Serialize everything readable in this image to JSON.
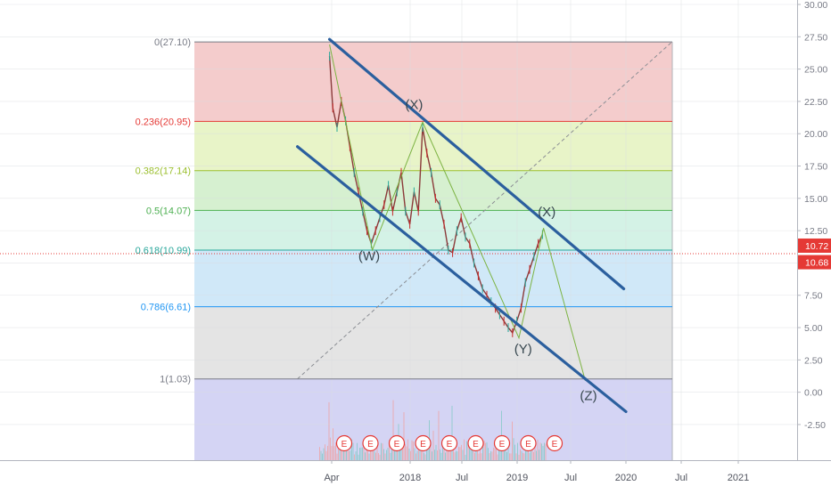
{
  "chart_data": {
    "type": "candlestick",
    "x_axis": {
      "tick_labels": [
        "Apr",
        "2018",
        "Jul",
        "2019",
        "Jul",
        "2020",
        "Jul",
        "2021"
      ]
    },
    "y_axis": {
      "range": [
        -4.5,
        30
      ],
      "tick_values": [
        -2.5,
        0,
        2.5,
        5,
        7.5,
        10,
        12.5,
        15,
        17.5,
        20,
        22.5,
        25,
        27.5,
        30
      ],
      "tick_labels": [
        "-2.50",
        "0.00",
        "2.50",
        "5.00",
        "7.50",
        "10.00",
        "12.50",
        "15.00",
        "17.50",
        "20.00",
        "22.50",
        "25.00",
        "27.50",
        "30.00"
      ]
    },
    "price_labels": [
      {
        "label": "10.72",
        "value": 10.72,
        "color": "#e53935"
      },
      {
        "label": "10.68",
        "value": 10.68,
        "color": "#e53935"
      }
    ],
    "fibonacci": {
      "levels": [
        {
          "label": "0(27.10)",
          "value": 27.1,
          "color": "#787b86"
        },
        {
          "label": "0.236(20.95)",
          "value": 20.95,
          "color": "#e53935"
        },
        {
          "label": "0.382(17.14)",
          "value": 17.14,
          "color": "#9bbf2e"
        },
        {
          "label": "0.5(14.07)",
          "value": 14.07,
          "color": "#4caf50"
        },
        {
          "label": "0.618(10.99)",
          "value": 10.99,
          "color": "#26a69a"
        },
        {
          "label": "0.786(6.61)",
          "value": 6.61,
          "color": "#2196f3"
        },
        {
          "label": "1(1.03)",
          "value": 1.03,
          "color": "#787b86"
        }
      ],
      "zone_colors": [
        "#f4cccc",
        "#e8f4c8",
        "#d6f0d0",
        "#d4f2e6",
        "#d0e8f8",
        "#e4e4e4",
        "#d4d4f4"
      ]
    },
    "wave_labels": [
      {
        "label": "(X)",
        "x": 2018.02,
        "y": 21.9
      },
      {
        "label": "(W)",
        "x": 2017.6,
        "y": 10.2
      },
      {
        "label": "(X)",
        "x": 2019.26,
        "y": 13.6
      },
      {
        "label": "(Y)",
        "x": 2019.04,
        "y": 3.0
      },
      {
        "label": "(Z)",
        "x": 2019.65,
        "y": -0.6
      }
    ],
    "wave_path": [
      [
        2017.23,
        26.9
      ],
      [
        2017.63,
        11.0
      ],
      [
        2018.1,
        20.9
      ],
      [
        2019.0,
        4.2
      ],
      [
        2019.23,
        12.7
      ],
      [
        2019.62,
        0.9
      ]
    ],
    "channel_upper": [
      [
        2017.23,
        27.3
      ],
      [
        2019.98,
        8.0
      ]
    ],
    "channel_lower": [
      [
        2016.93,
        19.0
      ],
      [
        2020.0,
        -1.5
      ]
    ],
    "diagonal": [
      [
        2016.93,
        1.03
      ],
      [
        2020.43,
        27.1
      ]
    ],
    "earnings_marker": "E",
    "earnings_count": 9,
    "price_series": {
      "x": [
        2017.23,
        2017.26,
        2017.3,
        2017.34,
        2017.38,
        2017.42,
        2017.46,
        2017.5,
        2017.54,
        2017.58,
        2017.62,
        2017.66,
        2017.7,
        2017.74,
        2017.78,
        2017.82,
        2017.86,
        2017.9,
        2017.94,
        2017.98,
        2018.02,
        2018.06,
        2018.1,
        2018.14,
        2018.18,
        2018.22,
        2018.26,
        2018.3,
        2018.34,
        2018.38,
        2018.42,
        2018.46,
        2018.5,
        2018.54,
        2018.58,
        2018.62,
        2018.66,
        2018.7,
        2018.74,
        2018.78,
        2018.82,
        2018.86,
        2018.9,
        2018.94,
        2018.98,
        2019.02,
        2019.06,
        2019.1,
        2019.14,
        2019.18,
        2019.22
      ],
      "y": [
        26.0,
        22.0,
        20.5,
        22.5,
        21.0,
        19.0,
        17.0,
        15.5,
        14.0,
        12.5,
        11.5,
        12.5,
        13.5,
        14.5,
        16.0,
        14.0,
        15.5,
        17.0,
        14.0,
        13.0,
        15.5,
        14.0,
        20.5,
        18.5,
        17.0,
        15.0,
        14.5,
        13.0,
        11.0,
        10.8,
        12.5,
        13.5,
        12.0,
        11.5,
        10.0,
        9.0,
        8.0,
        7.5,
        7.0,
        6.5,
        6.0,
        5.5,
        5.0,
        4.6,
        5.5,
        6.5,
        8.5,
        9.5,
        10.5,
        11.5,
        12.2
      ]
    }
  }
}
